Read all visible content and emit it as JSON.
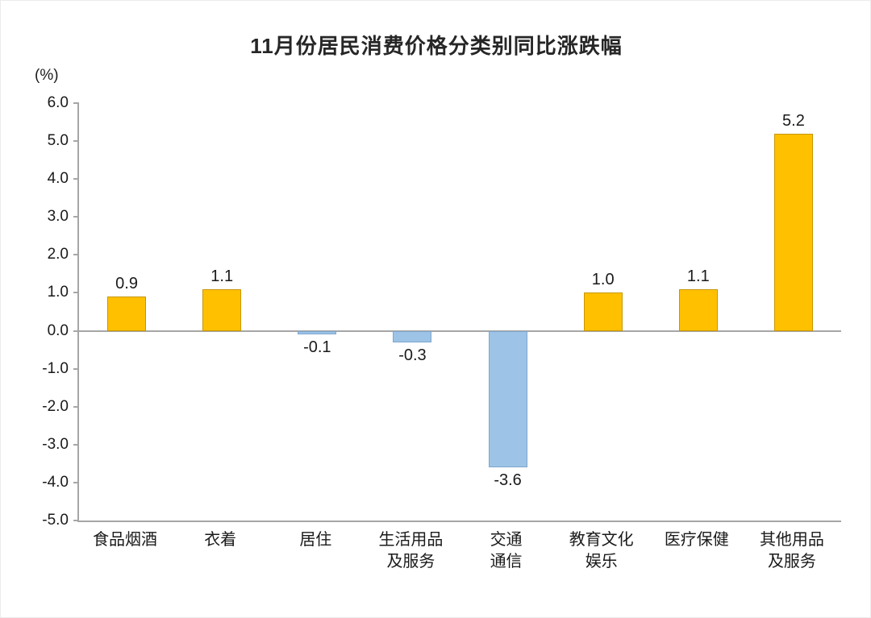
{
  "chart_data": {
    "type": "bar",
    "title": "11月份居民消费价格分类别同比涨跌幅",
    "ylabel": "(%)",
    "xlabel": "",
    "categories": [
      "食品烟酒",
      "衣着",
      "居住",
      "生活用品\n及服务",
      "交通\n通信",
      "教育文化\n娱乐",
      "医疗保健",
      "其他用品\n及服务"
    ],
    "values": [
      0.9,
      1.1,
      -0.1,
      -0.3,
      -3.6,
      1.0,
      1.1,
      5.2
    ],
    "value_labels": [
      "0.9",
      "1.1",
      "-0.1",
      "-0.3",
      "-3.6",
      "1.0",
      "1.1",
      "5.2"
    ],
    "ylim": [
      -5.0,
      6.0
    ],
    "ytick_step": 1.0,
    "yticks": [
      "6.0",
      "5.0",
      "4.0",
      "3.0",
      "2.0",
      "1.0",
      "0.0",
      "-1.0",
      "-2.0",
      "-3.0",
      "-4.0",
      "-5.0"
    ],
    "colors": {
      "positive_bar": "#ffc000",
      "negative_bar": "#9dc3e6",
      "axis": "#a6a6a6",
      "text": "#1a1a1a"
    },
    "grid": false,
    "legend": false
  }
}
